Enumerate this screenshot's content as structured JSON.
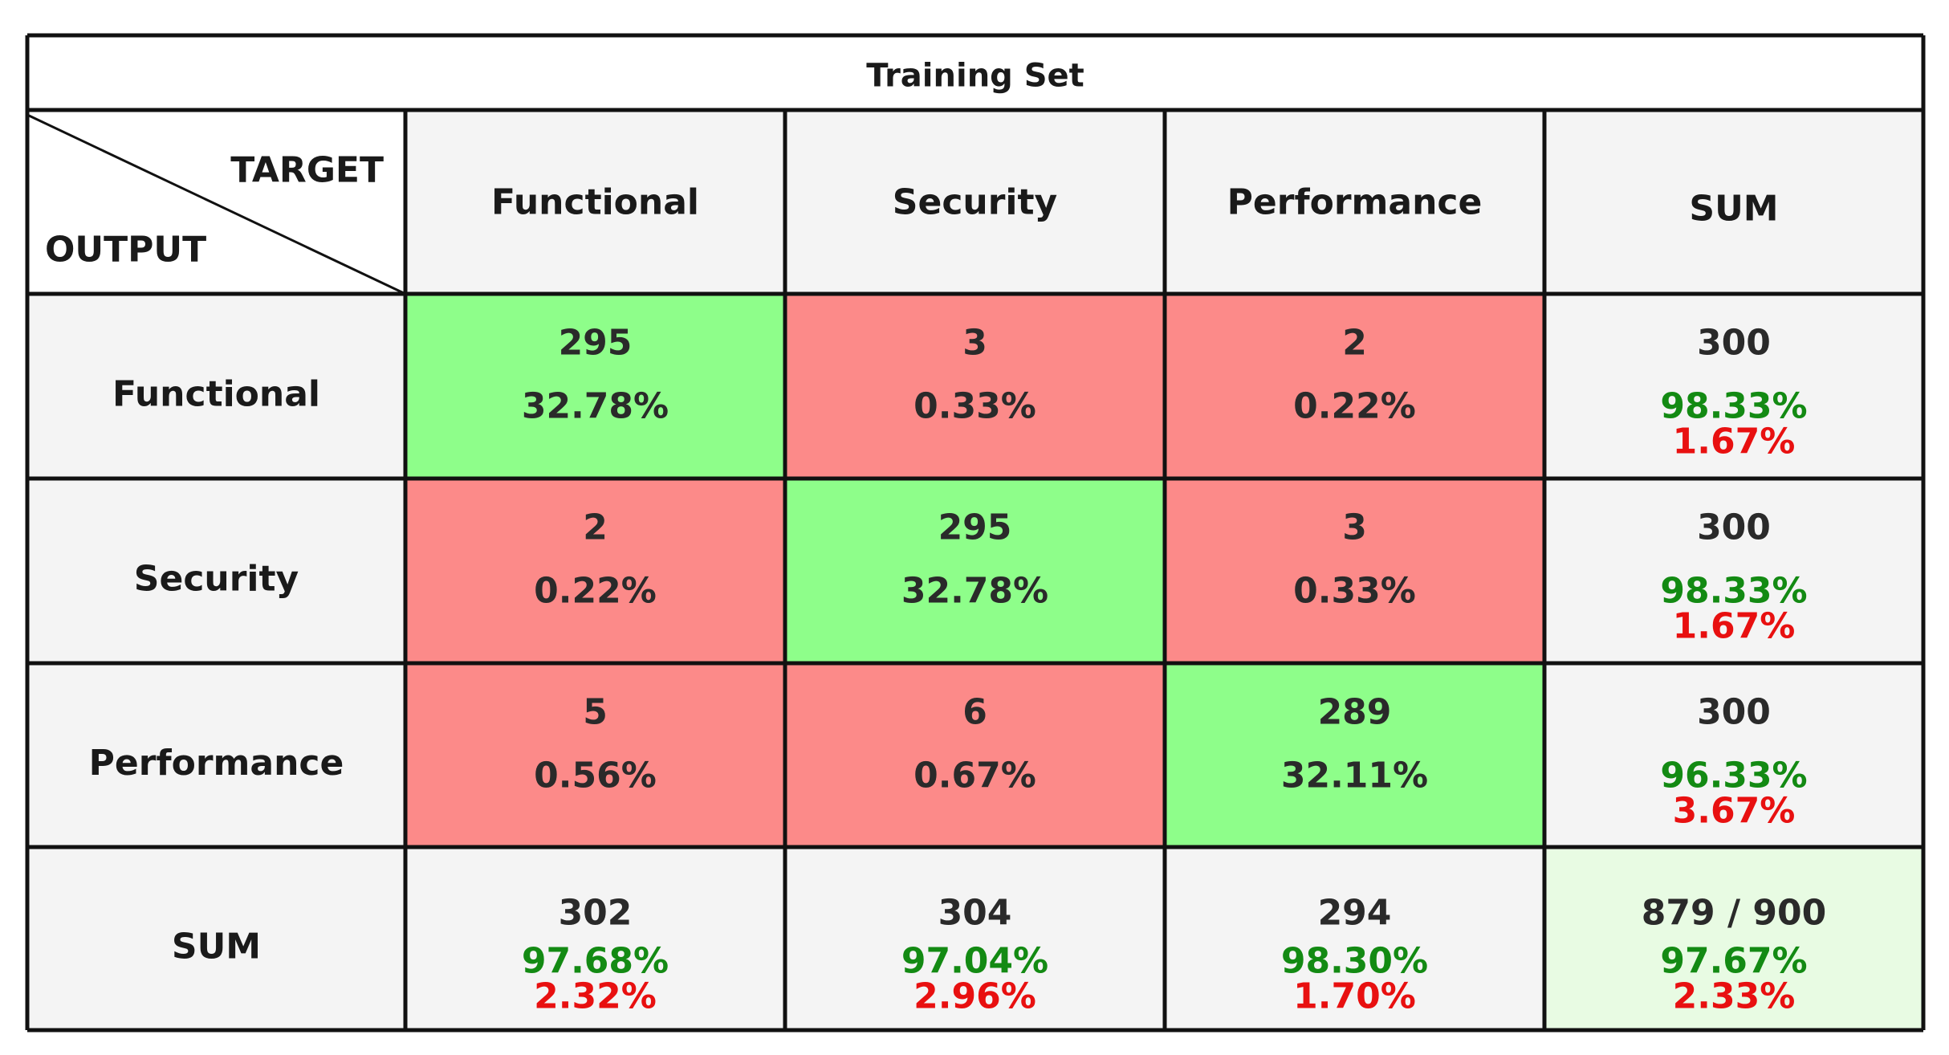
{
  "chart_data": {
    "type": "table",
    "title": "Training Set",
    "corner": {
      "target_label": "TARGET",
      "output_label": "OUTPUT"
    },
    "column_headers": [
      "Functional",
      "Security",
      "Performance",
      "SUM"
    ],
    "row_headers": [
      "Functional",
      "Security",
      "Performance",
      "SUM"
    ],
    "matrix": [
      [
        {
          "count": "295",
          "percent": "32.78%",
          "kind": "correct"
        },
        {
          "count": "3",
          "percent": "0.33%",
          "kind": "error"
        },
        {
          "count": "2",
          "percent": "0.22%",
          "kind": "error"
        }
      ],
      [
        {
          "count": "2",
          "percent": "0.22%",
          "kind": "error"
        },
        {
          "count": "295",
          "percent": "32.78%",
          "kind": "correct"
        },
        {
          "count": "3",
          "percent": "0.33%",
          "kind": "error"
        }
      ],
      [
        {
          "count": "5",
          "percent": "0.56%",
          "kind": "error"
        },
        {
          "count": "6",
          "percent": "0.67%",
          "kind": "error"
        },
        {
          "count": "289",
          "percent": "32.11%",
          "kind": "correct"
        }
      ]
    ],
    "row_sums": [
      {
        "count": "300",
        "good": "98.33%",
        "bad": "1.67%"
      },
      {
        "count": "300",
        "good": "98.33%",
        "bad": "1.67%"
      },
      {
        "count": "300",
        "good": "96.33%",
        "bad": "3.67%"
      }
    ],
    "column_sums": [
      {
        "count": "302",
        "good": "97.68%",
        "bad": "2.32%"
      },
      {
        "count": "304",
        "good": "97.04%",
        "bad": "2.96%"
      },
      {
        "count": "294",
        "good": "98.30%",
        "bad": "1.70%"
      }
    ],
    "total": {
      "count": "879 / 900",
      "good": "97.67%",
      "bad": "2.33%"
    },
    "colors": {
      "correct": "#8efe8a",
      "error": "#fc8a89",
      "header": "#f4f4f4",
      "total": "#e8fbe3",
      "good_text": "#138a13",
      "bad_text": "#e81010"
    }
  }
}
